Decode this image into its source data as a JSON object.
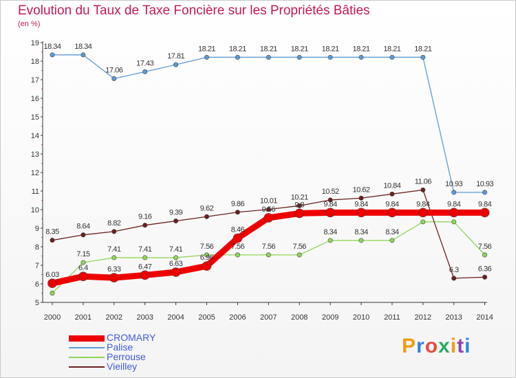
{
  "header": {
    "title": "Evolution du Taux de Taxe Foncière sur les Propriétés Bâties",
    "unit": "(en %)"
  },
  "logo": {
    "text": "Proxiti",
    "colors": [
      "#f39c12",
      "#2e86de",
      "#e74c3c",
      "#27ae60",
      "#f39c12",
      "#8e44ad",
      "#2e86de"
    ]
  },
  "chart_data": {
    "type": "line",
    "title": "Evolution du Taux de Taxe Foncière sur les Propriétés Bâties",
    "ylabel": "(en %)",
    "xlabel": "",
    "x": [
      2000,
      2001,
      2002,
      2003,
      2004,
      2005,
      2006,
      2007,
      2008,
      2009,
      2010,
      2011,
      2012,
      2013,
      2014
    ],
    "ylim": [
      5,
      19
    ],
    "yticks": [
      5,
      6,
      7,
      8,
      9,
      10,
      11,
      12,
      13,
      14,
      15,
      16,
      17,
      18,
      19
    ],
    "grid": false,
    "legend": "bottom-left",
    "series": [
      {
        "name": "CROMARY",
        "color": "#ee0000",
        "values": [
          6.03,
          6.4,
          6.33,
          6.47,
          6.63,
          6.96,
          8.46,
          9.56,
          9.8,
          9.84,
          9.84,
          9.84,
          9.84,
          9.84,
          9.84
        ],
        "labels": [
          "6.03",
          "6.4",
          "6.33",
          "6.47",
          "6.63",
          "6.96",
          "8.46",
          "9.56",
          "9.8",
          "9.84",
          "9.84",
          "9.84",
          "9.84",
          "9.84",
          "9.84"
        ]
      },
      {
        "name": "Palise",
        "color": "#5b9bd5",
        "values": [
          18.34,
          18.34,
          17.06,
          17.43,
          17.81,
          18.21,
          18.21,
          18.21,
          18.21,
          18.21,
          18.21,
          18.21,
          18.21,
          10.93,
          10.93
        ],
        "labels": [
          "18.34",
          "18.34",
          "17.06",
          "17.43",
          "17.81",
          "18.21",
          "18.21",
          "18.21",
          "18.21",
          "18.21",
          "18.21",
          "18.21",
          "18.21",
          "10.93",
          "10.93"
        ]
      },
      {
        "name": "Perrouse",
        "color": "#8fd65a",
        "values": [
          5.5,
          7.15,
          7.41,
          7.41,
          7.41,
          7.56,
          7.56,
          7.56,
          7.56,
          8.34,
          8.34,
          8.34,
          9.34,
          9.34,
          7.56
        ],
        "labels": [
          "",
          "7.15",
          "7.41",
          "7.41",
          "7.41",
          "7.56",
          "7.56",
          "7.56",
          "7.56",
          "8.34",
          "8.34",
          "8.34",
          "",
          "",
          "7.56"
        ]
      },
      {
        "name": "Vieilley",
        "color": "#6b1f1f",
        "values": [
          8.35,
          8.64,
          8.82,
          9.16,
          9.39,
          9.62,
          9.86,
          10.01,
          10.21,
          10.52,
          10.62,
          10.84,
          11.06,
          6.3,
          6.36
        ],
        "labels": [
          "8.35",
          "8.64",
          "8.82",
          "9.16",
          "9.39",
          "9.62",
          "9.86",
          "10.01",
          "10.21",
          "10.52",
          "10.62",
          "10.84",
          "11.06",
          "6.3",
          "6.36"
        ]
      }
    ]
  }
}
